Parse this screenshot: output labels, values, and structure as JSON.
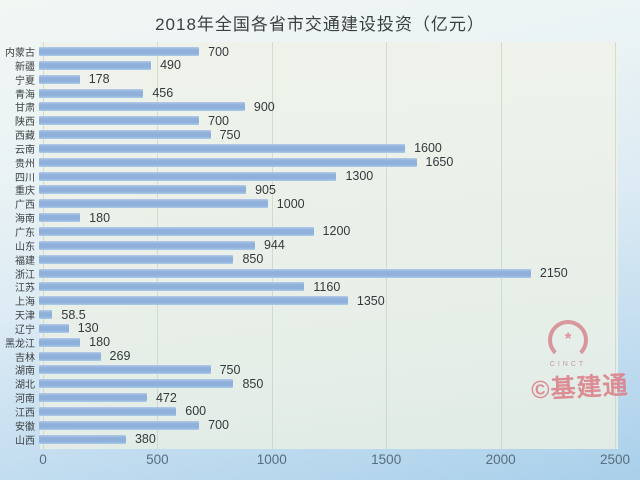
{
  "title": "2018年全国各省市交通建设投资（亿元）",
  "chart_data": {
    "type": "bar",
    "orientation": "horizontal",
    "title": "2018年全国各省市交通建设投资（亿元）",
    "xlabel": "",
    "ylabel": "",
    "categories": [
      "内蒙古",
      "新疆",
      "宁夏",
      "青海",
      "甘肃",
      "陕西",
      "西藏",
      "云南",
      "贵州",
      "四川",
      "重庆",
      "广西",
      "海南",
      "广东",
      "山东",
      "福建",
      "浙江",
      "江苏",
      "上海",
      "天津",
      "辽宁",
      "黑龙江",
      "吉林",
      "湖南",
      "湖北",
      "河南",
      "江西",
      "安徽",
      "山西"
    ],
    "values": [
      700,
      490,
      178,
      456,
      900,
      700,
      750,
      1600,
      1650,
      1300,
      905,
      1000,
      180,
      1200,
      944,
      850,
      2150,
      1160,
      1350,
      58.5,
      130,
      180,
      269,
      750,
      850,
      472,
      600,
      700,
      380
    ],
    "value_labels": [
      "700",
      "490",
      "178",
      "456",
      "900",
      "700",
      "750",
      "1600",
      "1650",
      "1300",
      "905",
      "1000",
      "180",
      "1200",
      "944",
      "850",
      "2150",
      "1160",
      "1350",
      "58.5",
      "130",
      "180",
      "269",
      "750",
      "850",
      "472",
      "600",
      "700",
      "380"
    ],
    "x_ticks": [
      0,
      500,
      1000,
      1500,
      2000,
      2500
    ],
    "xlim": [
      0,
      2600
    ],
    "grid": "vertical",
    "legend": "none",
    "bar_color": "#90b1dc",
    "plot_background": "#edf1ea",
    "page_background_top": "#f2f7f4",
    "page_background_bottom": "#a9d0ea"
  },
  "watermark": {
    "logo_icon": "circle-arc-flower",
    "logo_text": "CINCT",
    "credit": "©基建通",
    "color": "#db838c",
    "flower_glyph": "*"
  }
}
